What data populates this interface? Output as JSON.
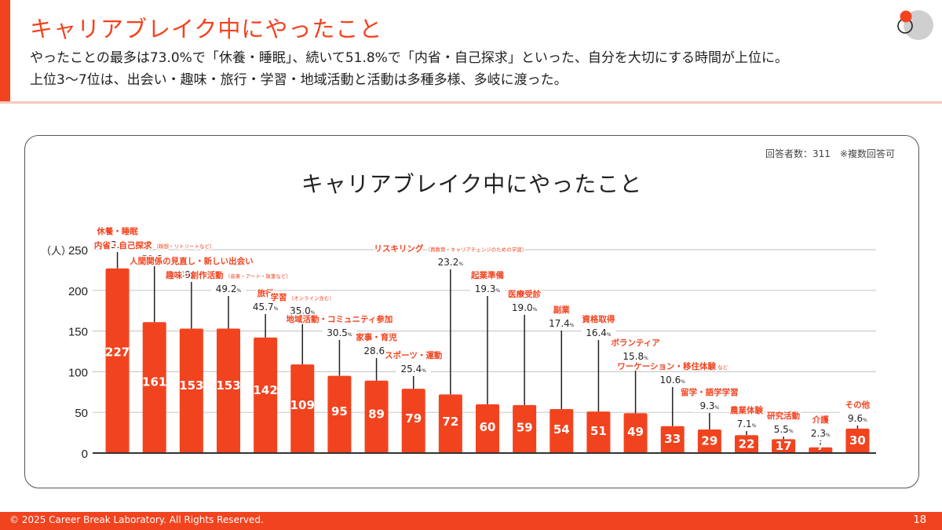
{
  "header": {
    "title": "キャリアブレイク中にやったこと",
    "subtitle_line1": "やったことの最多は73.0%で「休養・睡眠」、続いて51.8%で「内省・自己探求」といった、自分を大切にする時間が上位に。",
    "subtitle_line2": "上位3〜7位は、出会い・趣味・旅行・学習・地域活動と活動は多種多様、多岐に渡った。",
    "logo_icon": "circles-logo-icon"
  },
  "card": {
    "respondents_note": "回答者数：311　※複数回答可"
  },
  "colors": {
    "accent": "#f2431f",
    "text": "#222222",
    "grid": "#cccccc"
  },
  "chart_data": {
    "type": "bar",
    "title": "キャリアブレイク中にやったこと",
    "ylabel": "（人）",
    "xlabel": "",
    "ylim": [
      0,
      250
    ],
    "yticks": [
      0,
      50,
      100,
      150,
      200,
      250
    ],
    "grid": true,
    "percent_suffix": "%",
    "categories": [
      {
        "label": "休養・睡眠",
        "note": "",
        "value": 227,
        "percent": "73.0"
      },
      {
        "label": "内省・自己探求",
        "note": "（瞑想・リトリートなど）",
        "value": 161,
        "percent": "51.8"
      },
      {
        "label": "人間関係の見直し・新しい出会い",
        "note": "",
        "value": 153,
        "percent": "49.2"
      },
      {
        "label": "趣味・創作活動",
        "note": "（音楽・アート・執筆など）",
        "value": 153,
        "percent": "49.2"
      },
      {
        "label": "旅行",
        "note": "",
        "value": 142,
        "percent": "45.7"
      },
      {
        "label": "学習",
        "note": "（オンライン含む）",
        "value": 109,
        "percent": "35.0"
      },
      {
        "label": "地域活動・コミュニティ参加",
        "note": "",
        "value": 95,
        "percent": "30.5"
      },
      {
        "label": "家事・育児",
        "note": "",
        "value": 89,
        "percent": "28.6"
      },
      {
        "label": "スポーツ・運動",
        "note": "",
        "value": 79,
        "percent": "25.4"
      },
      {
        "label": "リスキリング",
        "note": "（再教育・キャリアチェンジのための学習）",
        "value": 72,
        "percent": "23.2"
      },
      {
        "label": "起業準備",
        "note": "",
        "value": 60,
        "percent": "19.3"
      },
      {
        "label": "医療受診",
        "note": "",
        "value": 59,
        "percent": "19.0"
      },
      {
        "label": "副業",
        "note": "",
        "value": 54,
        "percent": "17.4"
      },
      {
        "label": "資格取得",
        "note": "",
        "value": 51,
        "percent": "16.4"
      },
      {
        "label": "ボランティア",
        "note": "",
        "value": 49,
        "percent": "15.8"
      },
      {
        "label": "ワーケーション・移住体験",
        "note": "など",
        "value": 33,
        "percent": "10.6"
      },
      {
        "label": "留学・語学学習",
        "note": "",
        "value": 29,
        "percent": "9.3"
      },
      {
        "label": "農業体験",
        "note": "",
        "value": 22,
        "percent": "7.1"
      },
      {
        "label": "研究活動",
        "note": "",
        "value": 17,
        "percent": "5.5"
      },
      {
        "label": "介護",
        "note": "",
        "value": 7,
        "percent": "2.3"
      },
      {
        "label": "その他",
        "note": "",
        "value": 30,
        "percent": "9.6"
      }
    ]
  },
  "footer": {
    "copyright": "© 2025 Career Break Laboratory. All Rights Reserved.",
    "page_number": "18"
  }
}
